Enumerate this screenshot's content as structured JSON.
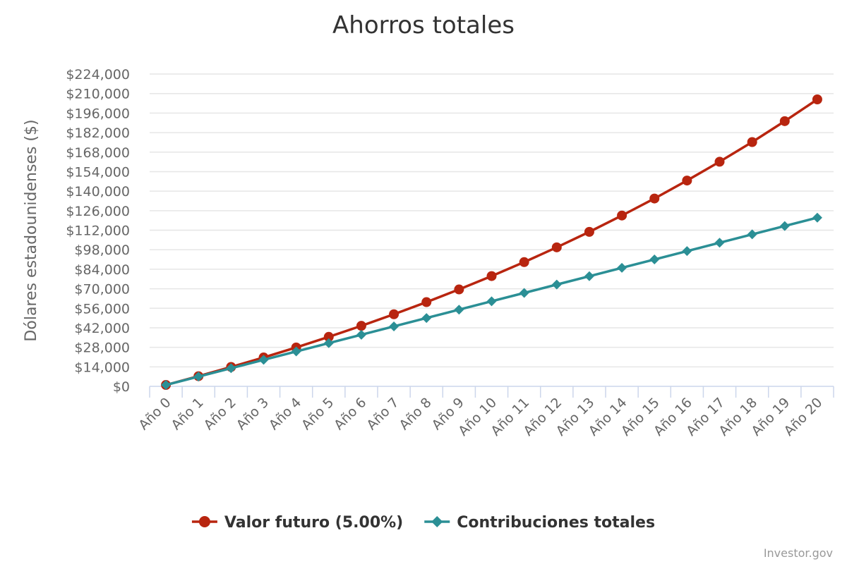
{
  "chart_data": {
    "type": "line",
    "title": "Ahorros totales",
    "ylabel": "Dólares estadounidenses ($)",
    "xlabel": "",
    "ylim": [
      0,
      224000
    ],
    "y_tick_values": [
      0,
      14000,
      28000,
      42000,
      56000,
      70000,
      84000,
      98000,
      112000,
      126000,
      140000,
      154000,
      168000,
      182000,
      196000,
      210000,
      224000
    ],
    "y_tick_labels": [
      "$0",
      "$14,000",
      "$28,000",
      "$42,000",
      "$56,000",
      "$70,000",
      "$84,000",
      "$98,000",
      "$112,000",
      "$126,000",
      "$140,000",
      "$154,000",
      "$168,000",
      "$182,000",
      "$196,000",
      "$210,000",
      "$224,000"
    ],
    "categories": [
      "Año 0",
      "Año 1",
      "Año 2",
      "Año 3",
      "Año 4",
      "Año 5",
      "Año 6",
      "Año 7",
      "Año 8",
      "Año 9",
      "Año 10",
      "Año 11",
      "Año 12",
      "Año 13",
      "Año 14",
      "Año 15",
      "Año 16",
      "Año 17",
      "Año 18",
      "Año 19",
      "Año 20"
    ],
    "series": [
      {
        "name": "Valor futuro (5.00%)",
        "color": "#b8250f",
        "marker": "circle",
        "values": [
          1000,
          7300,
          13900,
          20700,
          27900,
          35500,
          43400,
          51700,
          60400,
          69500,
          79100,
          89100,
          99700,
          110800,
          122500,
          134700,
          147600,
          161100,
          175200,
          190200,
          205800
        ]
      },
      {
        "name": "Contribuciones totales",
        "color": "#2b8f95",
        "marker": "diamond",
        "values": [
          1000,
          7000,
          13000,
          19000,
          25000,
          31000,
          37000,
          43000,
          49000,
          55000,
          61000,
          67000,
          73000,
          79000,
          85000,
          91000,
          97000,
          103000,
          109000,
          115000,
          121000
        ]
      }
    ],
    "legend_position": "bottom-center",
    "grid": true
  },
  "credit": "Investor.gov"
}
